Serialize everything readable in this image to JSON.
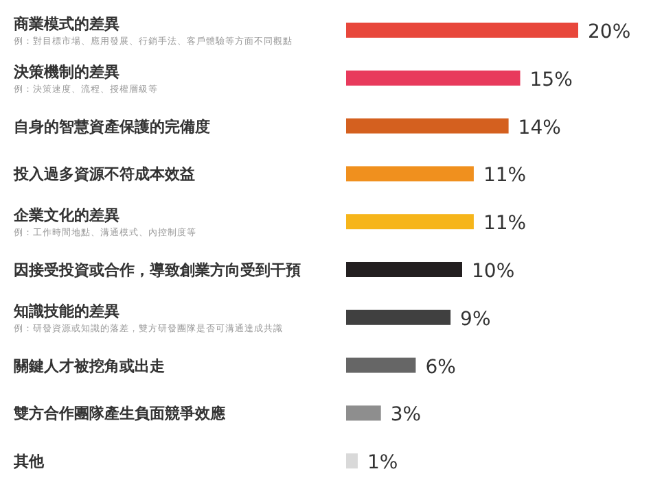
{
  "chart_data": {
    "type": "bar",
    "orientation": "horizontal",
    "categories": [
      "商業模式的差異",
      "決策機制的差異",
      "自身的智慧資產保護的完備度",
      "投入過多資源不符成本效益",
      "企業文化的差異",
      "因接受投資或合作，導致創業方向受到干預",
      "知識技能的差異",
      "關鍵人才被挖角或出走",
      "雙方合作團隊產生負面競爭效應",
      "其他"
    ],
    "values": [
      20,
      15,
      14,
      11,
      11,
      10,
      9,
      6,
      3,
      1
    ],
    "value_labels": [
      "20%",
      "15%",
      "14%",
      "11%",
      "11%",
      "10%",
      "9%",
      "6%",
      "3%",
      "1%"
    ],
    "colors": [
      "#e8473b",
      "#e83a5c",
      "#d4601f",
      "#f0901e",
      "#f6b51a",
      "#231f20",
      "#404040",
      "#666666",
      "#8e8e8e",
      "#d9d9d9"
    ],
    "annotations": [
      "例：對目標市場、應用發展、行銷手法、客戶體驗等方面不同觀點",
      "例：決策速度、流程、授權層級等",
      "例：工作時間地點、溝通模式、內控制度等",
      "例：研發資源或知識的落差，雙方研發團隊是否可溝通達成共識"
    ]
  }
}
